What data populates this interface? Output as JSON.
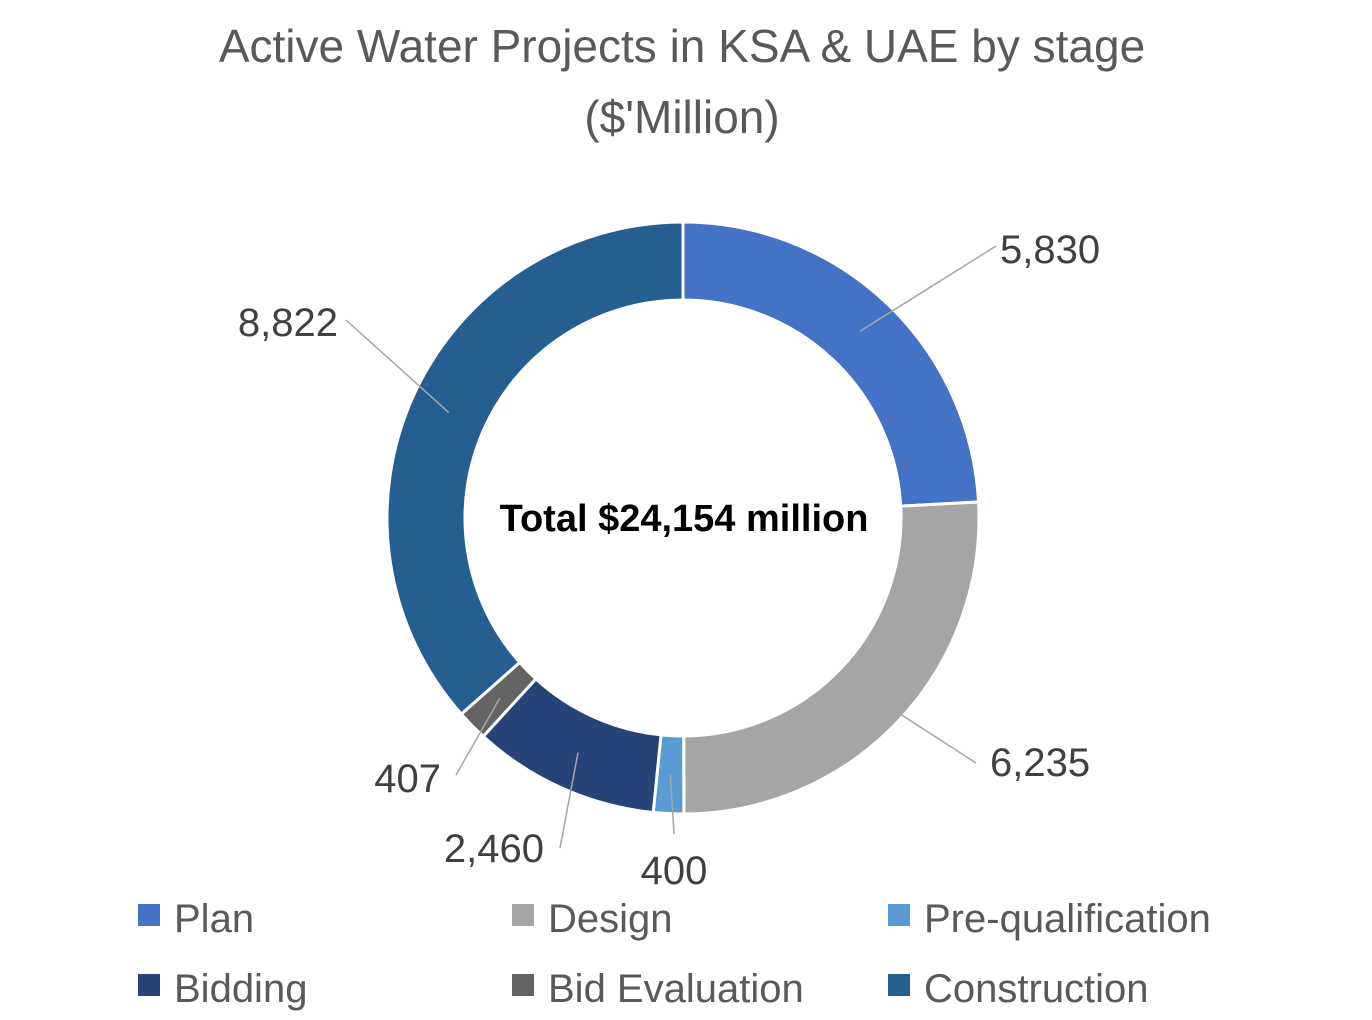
{
  "chart_data": {
    "type": "pie",
    "subtype": "donut",
    "title": "Active Water Projects in KSA & UAE by stage",
    "subtitle": "($'Million)",
    "center_label": "Total $24,154 million",
    "legend_position": "bottom",
    "categories": [
      "Plan",
      "Design",
      "Pre-qualification",
      "Bidding",
      "Bid Evaluation",
      "Construction"
    ],
    "values": [
      5830,
      6235,
      400,
      2460,
      407,
      8822
    ],
    "data_labels": [
      "5,830",
      "6,235",
      "400",
      "2,460",
      "407",
      "8,822"
    ],
    "colors": [
      "#4472C4",
      "#A5A5A5",
      "#5B9BD5",
      "#264478",
      "#636363",
      "#255E91"
    ]
  }
}
